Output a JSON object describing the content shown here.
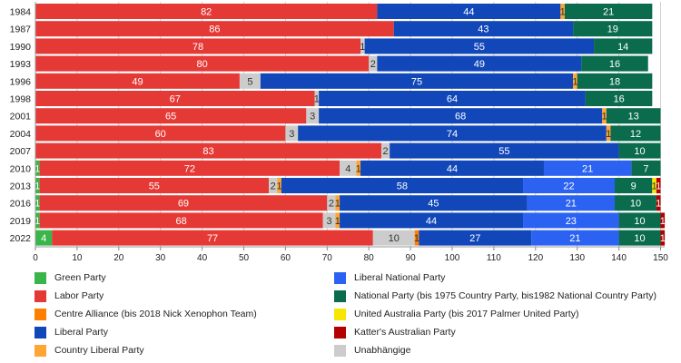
{
  "chart_data": {
    "type": "bar",
    "orientation": "horizontal",
    "stacked": true,
    "title": "",
    "xlabel": "",
    "ylabel": "",
    "xlim": [
      0,
      151
    ],
    "x_ticks": [
      0,
      10,
      20,
      30,
      40,
      50,
      60,
      70,
      80,
      90,
      100,
      110,
      120,
      130,
      140,
      150
    ],
    "grid": true,
    "legend_position": "bottom",
    "categories": [
      "1984",
      "1987",
      "1990",
      "1993",
      "1996",
      "1998",
      "2001",
      "2004",
      "2007",
      "2010",
      "2013",
      "2016",
      "2019",
      "2022"
    ],
    "series": [
      {
        "key": "green",
        "name": "Green Party",
        "color": "#3ab54a",
        "values": [
          0,
          0,
          0,
          0,
          0,
          0,
          0,
          0,
          0,
          1,
          1,
          1,
          1,
          4
        ]
      },
      {
        "key": "labor",
        "name": "Labor Party",
        "color": "#e53935",
        "values": [
          82,
          86,
          78,
          80,
          49,
          67,
          65,
          60,
          83,
          72,
          55,
          69,
          68,
          77
        ]
      },
      {
        "key": "independent",
        "name": "Unabhängige",
        "color": "#cccccc",
        "values": [
          0,
          0,
          1,
          2,
          5,
          1,
          3,
          3,
          2,
          4,
          2,
          2,
          3,
          10
        ]
      },
      {
        "key": "centre_alliance",
        "name": "Centre Alliance (bis 2018 Nick Xenophon Team)",
        "color": "#ff7f00",
        "values": [
          0,
          0,
          0,
          0,
          0,
          0,
          0,
          0,
          0,
          0,
          0,
          0,
          0,
          1
        ]
      },
      {
        "key": "country_liberal",
        "name": "Country Liberal Party",
        "color": "#ffa533",
        "values": [
          0,
          0,
          0,
          0,
          0,
          0,
          0,
          0,
          0,
          1,
          1,
          1,
          1,
          0
        ]
      },
      {
        "key": "liberal",
        "name": "Liberal Party",
        "color": "#1147b8",
        "values": [
          44,
          43,
          55,
          49,
          75,
          64,
          68,
          74,
          55,
          44,
          58,
          45,
          44,
          27
        ]
      },
      {
        "key": "country_liberal_b",
        "name": "Country Liberal Party",
        "color": "#ffa533",
        "values": [
          1,
          0,
          0,
          0,
          1,
          0,
          1,
          1,
          0,
          0,
          0,
          0,
          0,
          0
        ]
      },
      {
        "key": "liberal_national",
        "name": "Liberal National Party",
        "color": "#2b62f2",
        "values": [
          0,
          0,
          0,
          0,
          0,
          0,
          0,
          0,
          0,
          21,
          22,
          21,
          23,
          21
        ]
      },
      {
        "key": "national",
        "name": "National Party (bis 1975 Country Party, bis1982 National Country Party)",
        "color": "#0b6b4d",
        "values": [
          21,
          19,
          14,
          16,
          18,
          16,
          13,
          12,
          10,
          7,
          9,
          10,
          10,
          10
        ]
      },
      {
        "key": "united_australia",
        "name": "United Australia Party (bis 2017 Palmer United Party)",
        "color": "#f7e600",
        "values": [
          0,
          0,
          0,
          0,
          0,
          0,
          0,
          0,
          0,
          0,
          1,
          0,
          0,
          0
        ]
      },
      {
        "key": "katter",
        "name": "Katter's Australian Party",
        "color": "#b30000",
        "values": [
          0,
          0,
          0,
          0,
          0,
          0,
          0,
          0,
          0,
          0,
          1,
          1,
          1,
          1
        ]
      }
    ]
  },
  "legend": {
    "left": [
      {
        "label": "Green Party",
        "color": "#3ab54a"
      },
      {
        "label": "Labor Party",
        "color": "#e53935"
      },
      {
        "label": "Centre Alliance (bis 2018 Nick Xenophon Team)",
        "color": "#ff7f00"
      },
      {
        "label": "Liberal Party",
        "color": "#1147b8"
      },
      {
        "label": "Country Liberal Party",
        "color": "#ffa533"
      }
    ],
    "right": [
      {
        "label": "Liberal National Party",
        "color": "#2b62f2"
      },
      {
        "label": "National Party (bis 1975 Country Party, bis1982 National Country Party)",
        "color": "#0b6b4d"
      },
      {
        "label": "United Australia Party (bis 2017 Palmer United Party)",
        "color": "#f7e600"
      },
      {
        "label": "Katter's Australian Party",
        "color": "#b30000"
      },
      {
        "label": "Unabhängige",
        "color": "#cccccc"
      }
    ]
  }
}
